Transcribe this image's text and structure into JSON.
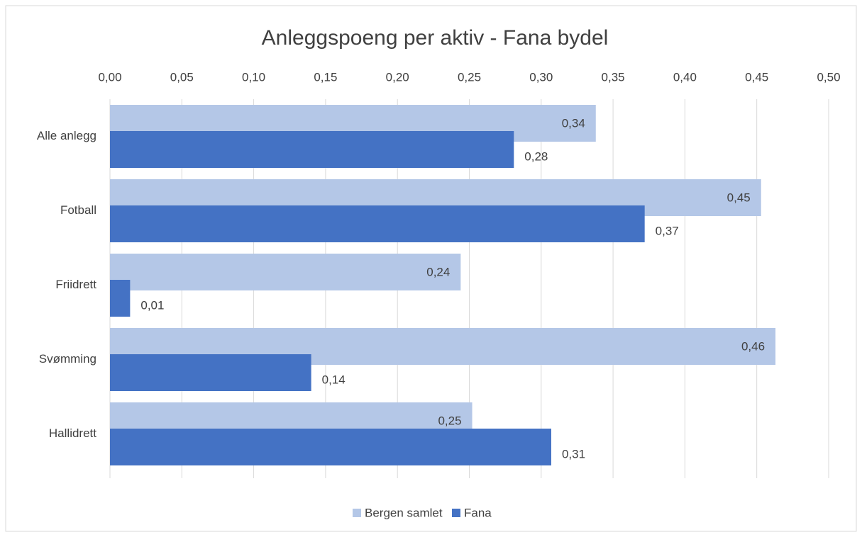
{
  "chart_data": {
    "type": "bar",
    "orientation": "horizontal",
    "title": "Anleggspoeng per aktiv - Fana bydel",
    "categories": [
      "Alle anlegg",
      "Fotball",
      "Friidrett",
      "Svømming",
      "Hallidrett"
    ],
    "series": [
      {
        "name": "Bergen samlet",
        "color": "#b4c7e7",
        "values": [
          0.338,
          0.453,
          0.244,
          0.463,
          0.252
        ],
        "value_labels": [
          "0,34",
          "0,45",
          "0,24",
          "0,46",
          "0,25"
        ]
      },
      {
        "name": "Fana",
        "color": "#4472c4",
        "values": [
          0.281,
          0.372,
          0.014,
          0.14,
          0.307
        ],
        "value_labels": [
          "0,28",
          "0,37",
          "0,01",
          "0,14",
          "0,31"
        ]
      }
    ],
    "xlim": [
      0,
      0.5
    ],
    "xticks": [
      {
        "value": 0,
        "label": "0,00"
      },
      {
        "value": 0.05,
        "label": "0,05"
      },
      {
        "value": 0.1,
        "label": "0,10"
      },
      {
        "value": 0.15,
        "label": "0,15"
      },
      {
        "value": 0.2,
        "label": "0,20"
      },
      {
        "value": 0.25,
        "label": "0,25"
      },
      {
        "value": 0.3,
        "label": "0,30"
      },
      {
        "value": 0.35,
        "label": "0,35"
      },
      {
        "value": 0.4,
        "label": "0,40"
      },
      {
        "value": 0.45,
        "label": "0,45"
      },
      {
        "value": 0.5,
        "label": "0,50"
      }
    ],
    "grid": true,
    "legend": "bottom"
  }
}
